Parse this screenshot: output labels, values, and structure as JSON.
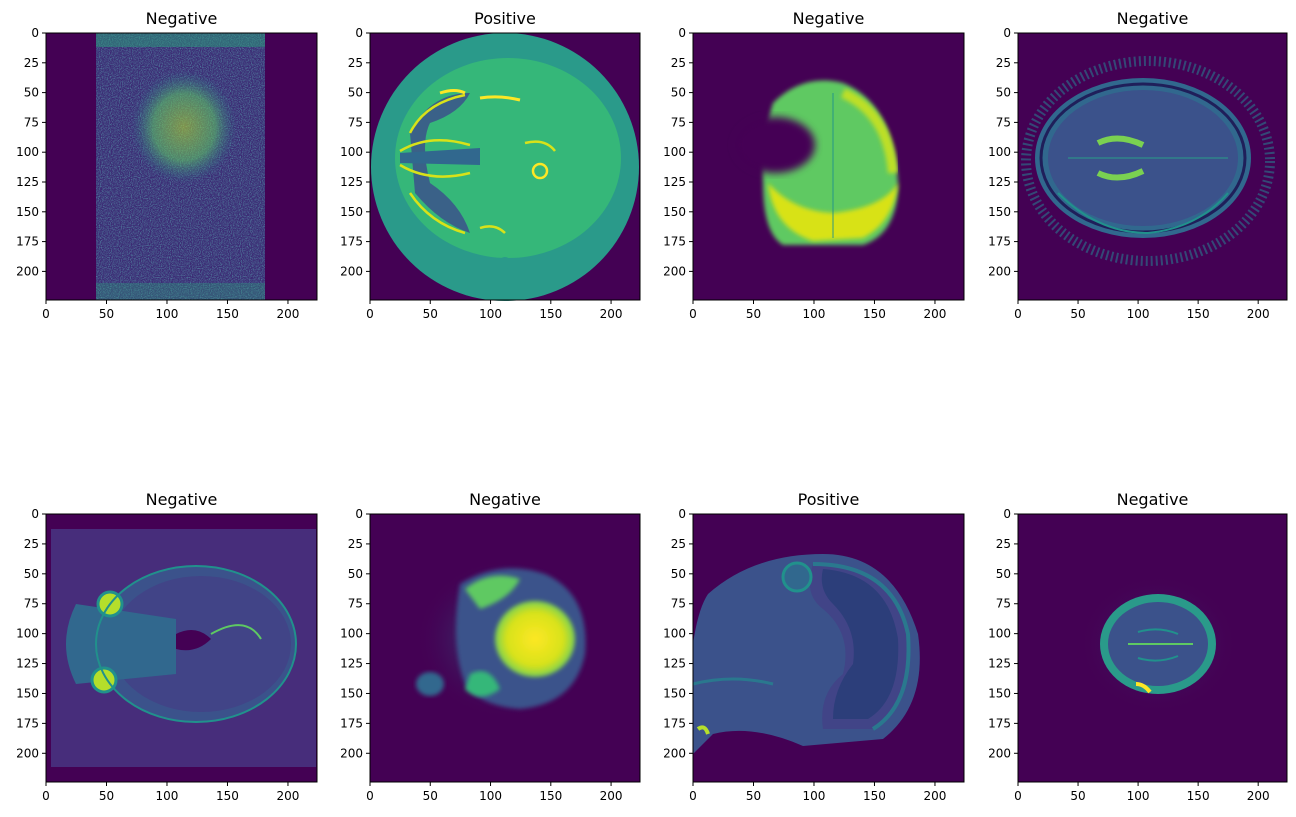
{
  "colors": {
    "viridis_dark": "#440154",
    "viridis_blue": "#3b528b",
    "viridis_teal": "#21918c",
    "viridis_green": "#5ec962",
    "viridis_yellow": "#fde725",
    "axis": "#000000",
    "background": "#ffffff"
  },
  "chart_data": [
    {
      "type": "heatmap",
      "title": "Negative",
      "xticks": [
        0,
        50,
        100,
        150,
        200
      ],
      "yticks": [
        0,
        25,
        50,
        75,
        100,
        125,
        150,
        175,
        200
      ],
      "xlim": [
        0,
        224
      ],
      "ylim": [
        224,
        0
      ],
      "colormap": "viridis"
    },
    {
      "type": "heatmap",
      "title": "Positive",
      "xticks": [
        0,
        50,
        100,
        150,
        200
      ],
      "yticks": [
        0,
        25,
        50,
        75,
        100,
        125,
        150,
        175,
        200
      ],
      "xlim": [
        0,
        224
      ],
      "ylim": [
        224,
        0
      ],
      "colormap": "viridis"
    },
    {
      "type": "heatmap",
      "title": "Negative",
      "xticks": [
        0,
        50,
        100,
        150,
        200
      ],
      "yticks": [
        0,
        25,
        50,
        75,
        100,
        125,
        150,
        175,
        200
      ],
      "xlim": [
        0,
        224
      ],
      "ylim": [
        224,
        0
      ],
      "colormap": "viridis"
    },
    {
      "type": "heatmap",
      "title": "Negative",
      "xticks": [
        0,
        50,
        100,
        150,
        200
      ],
      "yticks": [
        0,
        25,
        50,
        75,
        100,
        125,
        150,
        175,
        200
      ],
      "xlim": [
        0,
        224
      ],
      "ylim": [
        224,
        0
      ],
      "colormap": "viridis"
    },
    {
      "type": "heatmap",
      "title": "Negative",
      "xticks": [
        0,
        50,
        100,
        150,
        200
      ],
      "yticks": [
        0,
        25,
        50,
        75,
        100,
        125,
        150,
        175,
        200
      ],
      "xlim": [
        0,
        224
      ],
      "ylim": [
        224,
        0
      ],
      "colormap": "viridis"
    },
    {
      "type": "heatmap",
      "title": "Negative",
      "xticks": [
        0,
        50,
        100,
        150,
        200
      ],
      "yticks": [
        0,
        25,
        50,
        75,
        100,
        125,
        150,
        175,
        200
      ],
      "xlim": [
        0,
        224
      ],
      "ylim": [
        224,
        0
      ],
      "colormap": "viridis"
    },
    {
      "type": "heatmap",
      "title": "Positive",
      "xticks": [
        0,
        50,
        100,
        150,
        200
      ],
      "yticks": [
        0,
        25,
        50,
        75,
        100,
        125,
        150,
        175,
        200
      ],
      "xlim": [
        0,
        224
      ],
      "ylim": [
        224,
        0
      ],
      "colormap": "viridis"
    },
    {
      "type": "heatmap",
      "title": "Negative",
      "xticks": [
        0,
        50,
        100,
        150,
        200
      ],
      "yticks": [
        0,
        25,
        50,
        75,
        100,
        125,
        150,
        175,
        200
      ],
      "xlim": [
        0,
        224
      ],
      "ylim": [
        224,
        0
      ],
      "colormap": "viridis"
    }
  ]
}
